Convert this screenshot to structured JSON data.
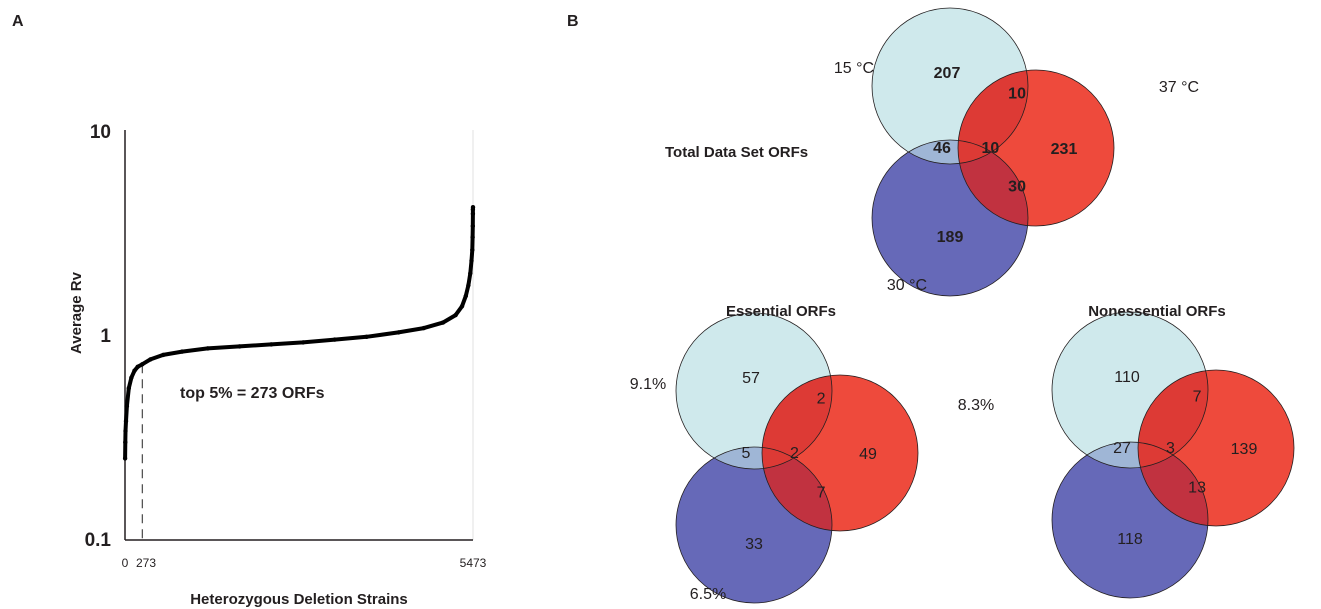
{
  "figure": {
    "panel_a_letter": "A",
    "panel_b_letter": "B"
  },
  "colors": {
    "circle_15": "#cfe9ec",
    "circle_37": "#ee4a3c",
    "circle_30": "#6669b8",
    "overlap_15_30": "#9fb6d6",
    "overlap_15_37": "#dd3a35",
    "overlap_37_30": "#c13240",
    "overlap_all": "#d33a36",
    "curve": "#000000"
  },
  "chart_data": [
    {
      "type": "scatter",
      "title": "",
      "xlabel": "Heterozygous Deletion Strains",
      "ylabel": "Average Rv",
      "yscale": "log",
      "ylim": [
        0.1,
        10
      ],
      "xlim": [
        0,
        5473
      ],
      "y_ticks": [
        "10",
        "1",
        "0.1"
      ],
      "x_ticks": [
        "0",
        "273",
        "5473"
      ],
      "cutoff_x": 273,
      "annotation": "top 5% = 273 ORFs",
      "points": [
        [
          1,
          0.25
        ],
        [
          4,
          0.3
        ],
        [
          8,
          0.34
        ],
        [
          15,
          0.38
        ],
        [
          30,
          0.45
        ],
        [
          60,
          0.55
        ],
        [
          100,
          0.62
        ],
        [
          150,
          0.67
        ],
        [
          200,
          0.7
        ],
        [
          273,
          0.72
        ],
        [
          400,
          0.76
        ],
        [
          600,
          0.8
        ],
        [
          900,
          0.83
        ],
        [
          1300,
          0.86
        ],
        [
          1800,
          0.88
        ],
        [
          2300,
          0.9
        ],
        [
          2800,
          0.92
        ],
        [
          3300,
          0.95
        ],
        [
          3800,
          0.98
        ],
        [
          4300,
          1.03
        ],
        [
          4700,
          1.08
        ],
        [
          5000,
          1.15
        ],
        [
          5200,
          1.25
        ],
        [
          5300,
          1.38
        ],
        [
          5360,
          1.55
        ],
        [
          5400,
          1.75
        ],
        [
          5430,
          2.0
        ],
        [
          5450,
          2.3
        ],
        [
          5462,
          2.6
        ],
        [
          5467,
          3.0
        ],
        [
          5470,
          3.4
        ],
        [
          5471,
          3.9
        ],
        [
          5472,
          4.1
        ],
        [
          5473,
          4.2
        ]
      ]
    },
    {
      "type": "venn",
      "title": "Total Data Set ORFs",
      "sets": [
        "15 °C",
        "37 °C",
        "30 °C"
      ],
      "regions": {
        "only_15": 207,
        "only_37": 231,
        "only_30": 189,
        "15_37": 10,
        "15_30": 46,
        "37_30": 30,
        "all": 10
      }
    },
    {
      "type": "venn",
      "title": "Essential ORFs",
      "set_percentages": {
        "15": "9.1%",
        "37": "8.3%",
        "30": "6.5%"
      },
      "regions": {
        "only_15": 57,
        "only_37": 49,
        "only_30": 33,
        "15_37": 2,
        "15_30": 5,
        "37_30": 7,
        "all": 2
      }
    },
    {
      "type": "venn",
      "title": "Nonessential ORFs",
      "regions": {
        "only_15": 110,
        "only_37": 139,
        "only_30": 118,
        "15_37": 7,
        "15_30": 27,
        "37_30": 13,
        "all": 3
      }
    }
  ]
}
